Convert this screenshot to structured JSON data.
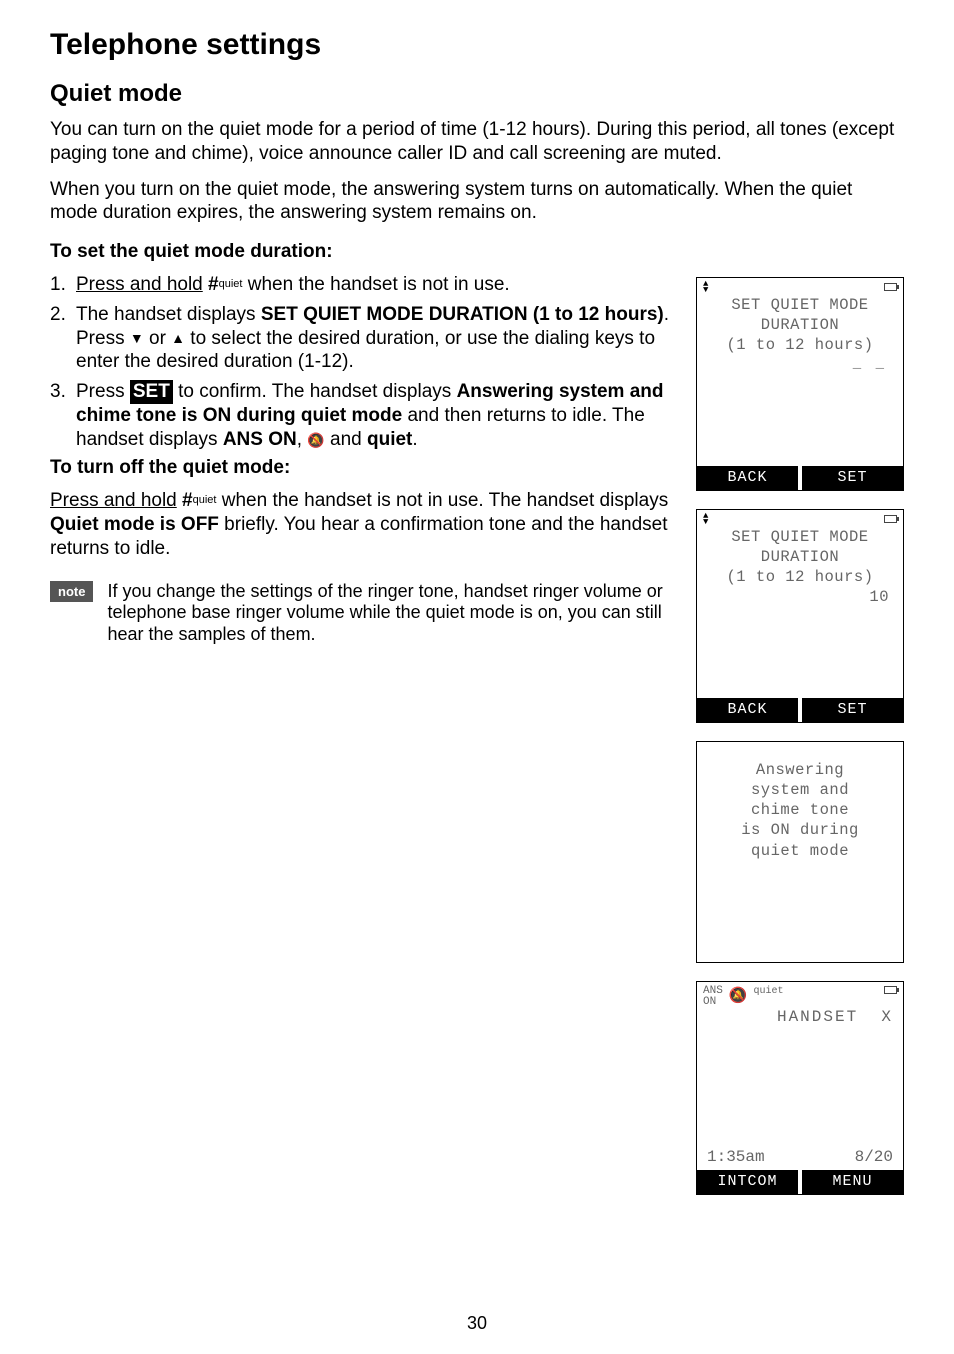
{
  "page_title": "Telephone settings",
  "section_title": "Quiet mode",
  "intro1": "You can turn on the quiet mode for a period of time (1-12 hours). During this period, all tones (except paging tone and chime), voice announce caller ID and call screening are muted.",
  "intro2": "When you turn on the quiet mode, the answering system turns on automatically. When the quiet mode duration expires, the answering system remains on.",
  "set_heading": "To set the quiet mode duration:",
  "step1_pre": "Press and hold",
  "pound": "#",
  "quiet_label": "quiet",
  "step1_post": " when the handset is not in use.",
  "step2_pre": "The handset displays ",
  "step2_bold": "SET QUIET MODE DURATION (1 to 12 hours)",
  "step2_mid1": ". Press ",
  "step2_mid2": " or ",
  "step2_post": " to select the desired duration, or use the dialing keys to enter the desired duration (1-12).",
  "step3_pre": "Press ",
  "set_btn": "SET",
  "step3_mid1": " to confirm. The handset displays ",
  "step3_bold1": "Answering system and chime tone is ON during quiet mode",
  "step3_mid2": " and then returns to idle. The handset displays ",
  "step3_bold2": "ANS ON",
  "step3_mid3": ", ",
  "step3_mid4": " and ",
  "step3_bold3": "quiet",
  "step3_end": ".",
  "off_heading": "To turn off the quiet mode:",
  "off_pre": "Press and hold",
  "off_mid1": " when the handset is not in use. The handset displays ",
  "off_bold": "Quiet mode is OFF",
  "off_post": " briefly. You hear a confirmation tone and the handset returns to idle.",
  "note_label": "note",
  "note_text": "If you change the settings of the ringer tone, handset ringer volume or telephone base ringer volume while the quiet mode is on, you can still hear the samples of them.",
  "lcd1": {
    "line1": "SET QUIET MODE",
    "line2": "DURATION",
    "line3": "(1 to 12 hours)",
    "dash": "_ _",
    "btn_left": "BACK",
    "btn_right": "SET"
  },
  "lcd2": {
    "line1": "SET QUIET MODE",
    "line2": "DURATION",
    "line3": "(1 to 12 hours)",
    "value": "10",
    "btn_left": "BACK",
    "btn_right": "SET"
  },
  "lcd3": {
    "l1": "Answering",
    "l2": "system and",
    "l3": "chime tone",
    "l4": "is ON during",
    "l5": "quiet mode"
  },
  "lcd4": {
    "ans1": "ANS",
    "ans2": "ON",
    "quiet": "quiet",
    "handset": "HANDSET",
    "x": "X",
    "time": "1:35am",
    "date": "8/20",
    "btn_left": "INTCOM",
    "btn_right": "MENU"
  },
  "page_number": "30"
}
